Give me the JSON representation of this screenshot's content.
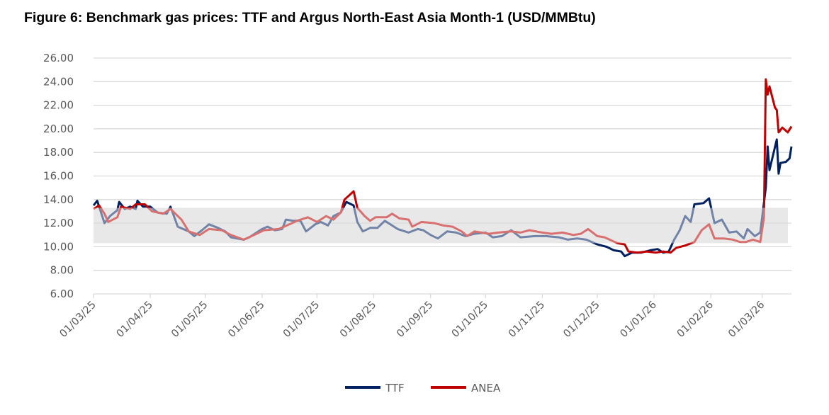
{
  "title": "Figure 6: Benchmark gas prices: TTF and Argus North-East Asia Month-1 (USD/MMBtu)",
  "chart_data": {
    "type": "line",
    "title": "Figure 6: Benchmark gas prices: TTF and Argus North-East Asia Month-1 (USD/MMBtu)",
    "xlabel": "",
    "ylabel": "",
    "ylim": [
      6,
      26
    ],
    "yticks": [
      "6.00",
      "8.00",
      "10.00",
      "12.00",
      "14.00",
      "16.00",
      "18.00",
      "20.00",
      "22.00",
      "24.00",
      "26.00"
    ],
    "xticks": [
      "01/03/25",
      "01/04/25",
      "01/05/25",
      "01/06/25",
      "01/07/25",
      "01/08/25",
      "01/09/25",
      "01/10/25",
      "01/11/25",
      "01/12/25",
      "01/01/26",
      "01/02/26",
      "01/03/26"
    ],
    "xtick_dates": [
      "2025-03-01",
      "2025-04-01",
      "2025-05-01",
      "2025-06-01",
      "2025-07-01",
      "2025-08-01",
      "2025-09-01",
      "2025-10-01",
      "2025-11-01",
      "2025-12-01",
      "2026-01-01",
      "2026-02-01",
      "2026-03-01"
    ],
    "xlim": [
      "2025-03-01",
      "2026-03-17"
    ],
    "grid": true,
    "legend": "bottom",
    "shaded_band": [
      10.3,
      13.3
    ],
    "band_color": "#e8e8e8",
    "series": [
      {
        "name": "TTF",
        "color": "#002060",
        "muted_color": "#7184a8",
        "points": [
          [
            "2025-03-01",
            13.5
          ],
          [
            "2025-03-03",
            13.9
          ],
          [
            "2025-03-07",
            12.0
          ],
          [
            "2025-03-10",
            12.6
          ],
          [
            "2025-03-14",
            13.1
          ],
          [
            "2025-03-15",
            13.8
          ],
          [
            "2025-03-18",
            13.2
          ],
          [
            "2025-03-21",
            13.4
          ],
          [
            "2025-03-24",
            13.2
          ],
          [
            "2025-03-25",
            13.9
          ],
          [
            "2025-03-28",
            13.4
          ],
          [
            "2025-04-01",
            13.4
          ],
          [
            "2025-04-05",
            12.9
          ],
          [
            "2025-04-10",
            12.8
          ],
          [
            "2025-04-12",
            13.4
          ],
          [
            "2025-04-16",
            11.7
          ],
          [
            "2025-04-22",
            11.3
          ],
          [
            "2025-04-25",
            10.9
          ],
          [
            "2025-04-30",
            11.5
          ],
          [
            "2025-05-03",
            11.9
          ],
          [
            "2025-05-08",
            11.6
          ],
          [
            "2025-05-12",
            11.3
          ],
          [
            "2025-05-15",
            10.8
          ],
          [
            "2025-05-22",
            10.6
          ],
          [
            "2025-05-25",
            10.8
          ],
          [
            "2025-06-01",
            11.5
          ],
          [
            "2025-06-04",
            11.7
          ],
          [
            "2025-06-08",
            11.4
          ],
          [
            "2025-06-12",
            11.5
          ],
          [
            "2025-06-14",
            12.3
          ],
          [
            "2025-06-18",
            12.2
          ],
          [
            "2025-06-22",
            12.2
          ],
          [
            "2025-06-25",
            11.3
          ],
          [
            "2025-06-30",
            11.9
          ],
          [
            "2025-07-03",
            12.1
          ],
          [
            "2025-07-07",
            11.8
          ],
          [
            "2025-07-10",
            12.6
          ],
          [
            "2025-07-14",
            12.9
          ],
          [
            "2025-07-17",
            13.8
          ],
          [
            "2025-07-21",
            13.5
          ],
          [
            "2025-07-23",
            12.1
          ],
          [
            "2025-07-26",
            11.3
          ],
          [
            "2025-07-30",
            11.6
          ],
          [
            "2025-08-03",
            11.6
          ],
          [
            "2025-08-07",
            12.2
          ],
          [
            "2025-08-11",
            11.8
          ],
          [
            "2025-08-14",
            11.5
          ],
          [
            "2025-08-20",
            11.2
          ],
          [
            "2025-08-25",
            11.5
          ],
          [
            "2025-08-28",
            11.4
          ],
          [
            "2025-09-01",
            11.0
          ],
          [
            "2025-09-05",
            10.7
          ],
          [
            "2025-09-10",
            11.3
          ],
          [
            "2025-09-15",
            11.2
          ],
          [
            "2025-09-20",
            10.9
          ],
          [
            "2025-09-25",
            11.1
          ],
          [
            "2025-10-01",
            11.2
          ],
          [
            "2025-10-05",
            10.8
          ],
          [
            "2025-10-10",
            10.9
          ],
          [
            "2025-10-15",
            11.4
          ],
          [
            "2025-10-20",
            10.8
          ],
          [
            "2025-10-28",
            10.9
          ],
          [
            "2025-11-03",
            10.9
          ],
          [
            "2025-11-10",
            10.8
          ],
          [
            "2025-11-15",
            10.6
          ],
          [
            "2025-11-20",
            10.7
          ],
          [
            "2025-11-25",
            10.6
          ],
          [
            "2025-12-01",
            10.2
          ],
          [
            "2025-12-06",
            10.0
          ],
          [
            "2025-12-10",
            9.7
          ],
          [
            "2025-12-14",
            9.6
          ],
          [
            "2025-12-16",
            9.2
          ],
          [
            "2025-12-20",
            9.5
          ],
          [
            "2025-12-25",
            9.5
          ],
          [
            "2025-12-30",
            9.7
          ],
          [
            "2026-01-03",
            9.8
          ],
          [
            "2026-01-06",
            9.5
          ],
          [
            "2026-01-09",
            9.6
          ],
          [
            "2026-01-12",
            10.6
          ],
          [
            "2026-01-15",
            11.4
          ],
          [
            "2026-01-18",
            12.6
          ],
          [
            "2026-01-21",
            12.1
          ],
          [
            "2026-01-23",
            13.6
          ],
          [
            "2026-01-28",
            13.7
          ],
          [
            "2026-01-31",
            14.1
          ],
          [
            "2026-02-03",
            12.0
          ],
          [
            "2026-02-07",
            12.3
          ],
          [
            "2026-02-11",
            11.2
          ],
          [
            "2026-02-15",
            11.3
          ],
          [
            "2026-02-19",
            10.7
          ],
          [
            "2026-02-21",
            11.5
          ],
          [
            "2026-02-25",
            10.9
          ],
          [
            "2026-02-28",
            11.2
          ],
          [
            "2026-03-03",
            15.0
          ],
          [
            "2026-03-04",
            18.5
          ],
          [
            "2026-03-05",
            16.5
          ],
          [
            "2026-03-09",
            19.1
          ],
          [
            "2026-03-10",
            16.2
          ],
          [
            "2026-03-11",
            17.1
          ],
          [
            "2026-03-14",
            17.2
          ],
          [
            "2026-03-16",
            17.5
          ],
          [
            "2026-03-17",
            18.5
          ]
        ]
      },
      {
        "name": "ANEA",
        "color": "#c00000",
        "muted_color": "#d87070",
        "points": [
          [
            "2025-03-01",
            13.2
          ],
          [
            "2025-03-04",
            13.5
          ],
          [
            "2025-03-07",
            12.8
          ],
          [
            "2025-03-09",
            12.1
          ],
          [
            "2025-03-14",
            12.5
          ],
          [
            "2025-03-16",
            13.4
          ],
          [
            "2025-03-21",
            13.2
          ],
          [
            "2025-03-24",
            13.6
          ],
          [
            "2025-03-29",
            13.6
          ],
          [
            "2025-04-02",
            13.0
          ],
          [
            "2025-04-08",
            12.8
          ],
          [
            "2025-04-12",
            13.2
          ],
          [
            "2025-04-18",
            12.3
          ],
          [
            "2025-04-22",
            11.3
          ],
          [
            "2025-04-28",
            11.0
          ],
          [
            "2025-05-03",
            11.5
          ],
          [
            "2025-05-10",
            11.4
          ],
          [
            "2025-05-15",
            11.0
          ],
          [
            "2025-05-22",
            10.6
          ],
          [
            "2025-05-29",
            11.1
          ],
          [
            "2025-06-02",
            11.4
          ],
          [
            "2025-06-10",
            11.5
          ],
          [
            "2025-06-16",
            11.9
          ],
          [
            "2025-06-20",
            12.2
          ],
          [
            "2025-06-26",
            12.5
          ],
          [
            "2025-07-01",
            12.1
          ],
          [
            "2025-07-06",
            12.6
          ],
          [
            "2025-07-10",
            12.3
          ],
          [
            "2025-07-14",
            12.9
          ],
          [
            "2025-07-16",
            14.0
          ],
          [
            "2025-07-21",
            14.7
          ],
          [
            "2025-07-23",
            13.3
          ],
          [
            "2025-07-27",
            12.6
          ],
          [
            "2025-07-30",
            12.2
          ],
          [
            "2025-08-02",
            12.5
          ],
          [
            "2025-08-08",
            12.5
          ],
          [
            "2025-08-11",
            12.8
          ],
          [
            "2025-08-15",
            12.4
          ],
          [
            "2025-08-20",
            12.3
          ],
          [
            "2025-08-22",
            11.7
          ],
          [
            "2025-08-27",
            12.1
          ],
          [
            "2025-09-03",
            12.0
          ],
          [
            "2025-09-08",
            11.8
          ],
          [
            "2025-09-13",
            11.7
          ],
          [
            "2025-09-18",
            11.3
          ],
          [
            "2025-09-21",
            10.9
          ],
          [
            "2025-09-25",
            11.3
          ],
          [
            "2025-10-03",
            11.1
          ],
          [
            "2025-10-08",
            11.2
          ],
          [
            "2025-10-15",
            11.3
          ],
          [
            "2025-10-20",
            11.2
          ],
          [
            "2025-10-25",
            11.4
          ],
          [
            "2025-11-01",
            11.2
          ],
          [
            "2025-11-06",
            11.1
          ],
          [
            "2025-11-12",
            11.2
          ],
          [
            "2025-11-18",
            11.0
          ],
          [
            "2025-11-22",
            11.1
          ],
          [
            "2025-11-26",
            11.5
          ],
          [
            "2025-12-01",
            10.9
          ],
          [
            "2025-12-05",
            10.8
          ],
          [
            "2025-12-12",
            10.3
          ],
          [
            "2025-12-16",
            10.2
          ],
          [
            "2025-12-18",
            9.6
          ],
          [
            "2025-12-23",
            9.5
          ],
          [
            "2025-12-28",
            9.6
          ],
          [
            "2026-01-02",
            9.5
          ],
          [
            "2026-01-06",
            9.6
          ],
          [
            "2026-01-10",
            9.5
          ],
          [
            "2026-01-13",
            9.9
          ],
          [
            "2026-01-18",
            10.1
          ],
          [
            "2026-01-23",
            10.4
          ],
          [
            "2026-01-27",
            11.4
          ],
          [
            "2026-01-31",
            11.9
          ],
          [
            "2026-02-03",
            10.7
          ],
          [
            "2026-02-08",
            10.7
          ],
          [
            "2026-02-13",
            10.6
          ],
          [
            "2026-02-17",
            10.4
          ],
          [
            "2026-02-20",
            10.4
          ],
          [
            "2026-02-24",
            10.6
          ],
          [
            "2026-02-28",
            10.4
          ],
          [
            "2026-03-02",
            12.5
          ],
          [
            "2026-03-03",
            24.2
          ],
          [
            "2026-03-04",
            22.9
          ],
          [
            "2026-03-05",
            23.6
          ],
          [
            "2026-03-08",
            21.8
          ],
          [
            "2026-03-09",
            21.6
          ],
          [
            "2026-03-10",
            19.7
          ],
          [
            "2026-03-12",
            20.1
          ],
          [
            "2026-03-15",
            19.7
          ],
          [
            "2026-03-17",
            20.2
          ]
        ]
      }
    ]
  }
}
